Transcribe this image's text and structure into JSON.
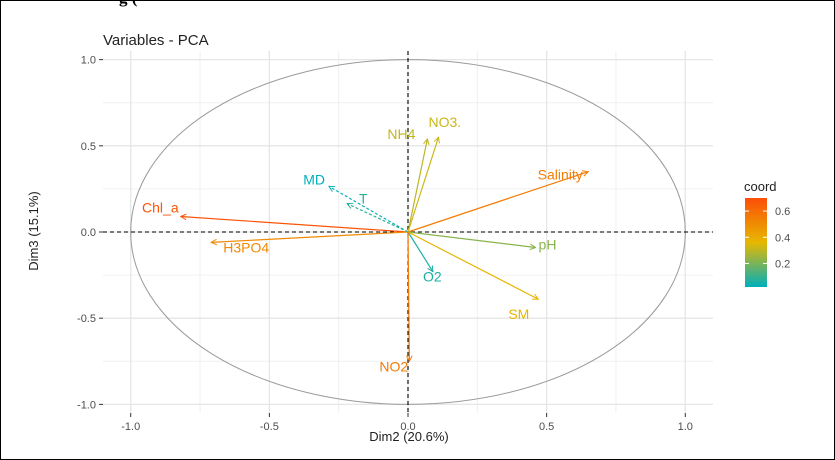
{
  "caption_fragment": "g                                                   (",
  "chart_data": {
    "type": "scatter",
    "title": "Variables - PCA",
    "xlabel": "Dim2 (20.6%)",
    "ylabel": "Dim3 (15.1%)",
    "xlim": [
      -1.1,
      1.1
    ],
    "ylim": [
      -1.05,
      1.05
    ],
    "xticks": [
      -1.0,
      -0.5,
      0.0,
      0.5,
      1.0
    ],
    "xtick_labels": [
      "-1.0",
      "-0.5",
      "0.0",
      "0.5",
      "1.0"
    ],
    "yticks": [
      -1.0,
      -0.5,
      0.0,
      0.5,
      1.0
    ],
    "ytick_labels": [
      "-1.0",
      "-0.5",
      "0.0",
      "0.5",
      "1.0"
    ],
    "grid": true,
    "correlation_circle": true,
    "reference_lines": [
      {
        "axis": "x",
        "value": 0,
        "style": "dashed"
      },
      {
        "axis": "y",
        "value": 0,
        "style": "dashed"
      }
    ],
    "color_scale": {
      "title": "coord",
      "ticks": [
        0.2,
        0.4,
        0.6
      ],
      "tick_labels": [
        "0.2",
        "0.4",
        "0.6"
      ],
      "domain": [
        0.02,
        0.7
      ],
      "low_color": "#00AFBB",
      "mid_color": "#E7B800",
      "high_color": "#FC4E07"
    },
    "legend_position": "right",
    "variables": [
      {
        "name": "Chl_a",
        "x": -0.82,
        "y": 0.09,
        "coord": 0.68
      },
      {
        "name": "H3PO4",
        "x": -0.71,
        "y": -0.06,
        "coord": 0.51
      },
      {
        "name": "MD",
        "x": -0.285,
        "y": 0.265,
        "coord": 0.02
      },
      {
        "name": "T",
        "x": -0.22,
        "y": 0.165,
        "coord": 0.08
      },
      {
        "name": "NH4",
        "x": 0.07,
        "y": 0.54,
        "coord": 0.3
      },
      {
        "name": "NO3.",
        "x": 0.11,
        "y": 0.55,
        "coord": 0.32
      },
      {
        "name": "Salinity",
        "x": 0.65,
        "y": 0.35,
        "coord": 0.55
      },
      {
        "name": "pH",
        "x": 0.46,
        "y": -0.09,
        "coord": 0.22
      },
      {
        "name": "O2",
        "x": 0.09,
        "y": -0.23,
        "coord": 0.06
      },
      {
        "name": "SM",
        "x": 0.47,
        "y": -0.39,
        "coord": 0.37
      },
      {
        "name": "NO2",
        "x": 0.005,
        "y": -0.75,
        "coord": 0.56
      }
    ]
  }
}
